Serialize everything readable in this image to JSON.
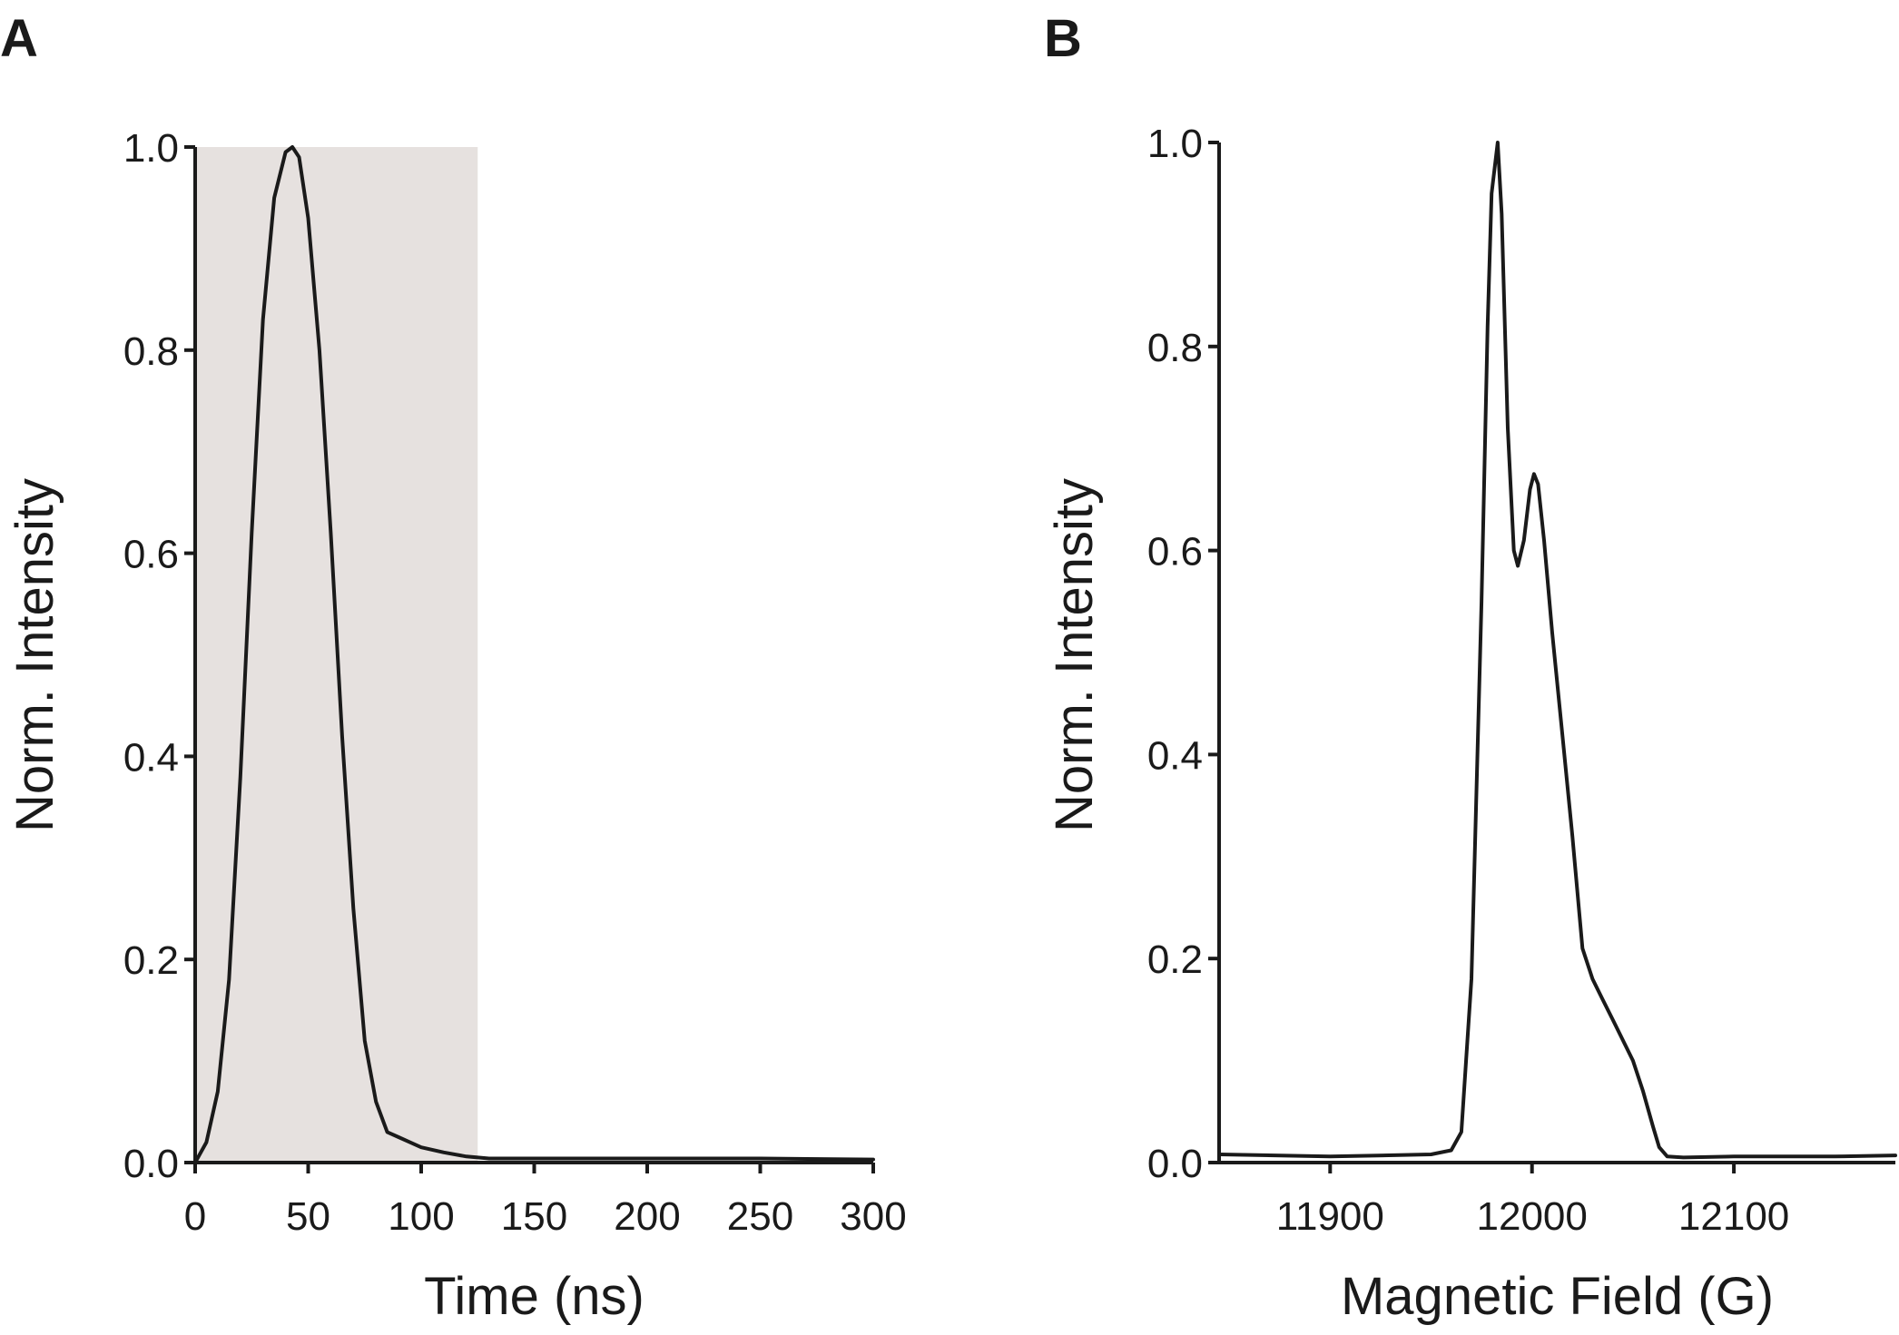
{
  "chart_data": [
    {
      "panel": "A",
      "type": "line",
      "xlabel": "Time (ns)",
      "ylabel": "Norm. Intensity",
      "xlim": [
        0,
        300
      ],
      "ylim": [
        0,
        1.0
      ],
      "xticks": [
        "0",
        "50",
        "100",
        "150",
        "200",
        "250",
        "300"
      ],
      "yticks": [
        "0.0",
        "0.2",
        "0.4",
        "0.6",
        "0.8",
        "1.0"
      ],
      "grid": false,
      "shaded_region": {
        "x_start": 0,
        "x_end": 125,
        "color": "#e6e1df"
      },
      "line_color": "#1a1a1a",
      "series": [
        {
          "x": [
            0,
            5,
            10,
            15,
            20,
            25,
            30,
            35,
            40,
            43,
            46,
            50,
            55,
            60,
            65,
            70,
            75,
            80,
            85,
            90,
            95,
            100,
            110,
            120,
            125,
            130,
            150,
            200,
            250,
            300
          ],
          "y": [
            0.0,
            0.02,
            0.07,
            0.18,
            0.38,
            0.62,
            0.83,
            0.95,
            0.995,
            1.0,
            0.99,
            0.93,
            0.8,
            0.62,
            0.42,
            0.25,
            0.12,
            0.06,
            0.03,
            0.025,
            0.02,
            0.015,
            0.01,
            0.006,
            0.005,
            0.004,
            0.004,
            0.004,
            0.004,
            0.003
          ]
        }
      ]
    },
    {
      "panel": "B",
      "type": "line",
      "xlabel": "Magnetic Field (G)",
      "ylabel": "Norm. Intensity",
      "xlim": [
        11845,
        12180
      ],
      "ylim": [
        0,
        1.0
      ],
      "xticks": [
        "11900",
        "12000",
        "12100"
      ],
      "yticks": [
        "0.0",
        "0.2",
        "0.4",
        "0.6",
        "0.8",
        "1.0"
      ],
      "grid": false,
      "line_color": "#1a1a1a",
      "series": [
        {
          "x": [
            11845,
            11900,
            11950,
            11960,
            11965,
            11970,
            11975,
            11978,
            11980,
            11983,
            11985,
            11988,
            11991,
            11993,
            11996,
            11999,
            12001,
            12003,
            12006,
            12010,
            12015,
            12020,
            12025,
            12030,
            12035,
            12040,
            12045,
            12050,
            12055,
            12060,
            12063,
            12067,
            12075,
            12100,
            12150,
            12180
          ],
          "y": [
            0.008,
            0.006,
            0.008,
            0.012,
            0.03,
            0.18,
            0.55,
            0.82,
            0.95,
            1.0,
            0.93,
            0.72,
            0.6,
            0.585,
            0.61,
            0.66,
            0.675,
            0.665,
            0.61,
            0.52,
            0.42,
            0.32,
            0.21,
            0.18,
            0.16,
            0.14,
            0.12,
            0.1,
            0.07,
            0.035,
            0.015,
            0.006,
            0.005,
            0.006,
            0.006,
            0.007
          ]
        }
      ]
    }
  ]
}
